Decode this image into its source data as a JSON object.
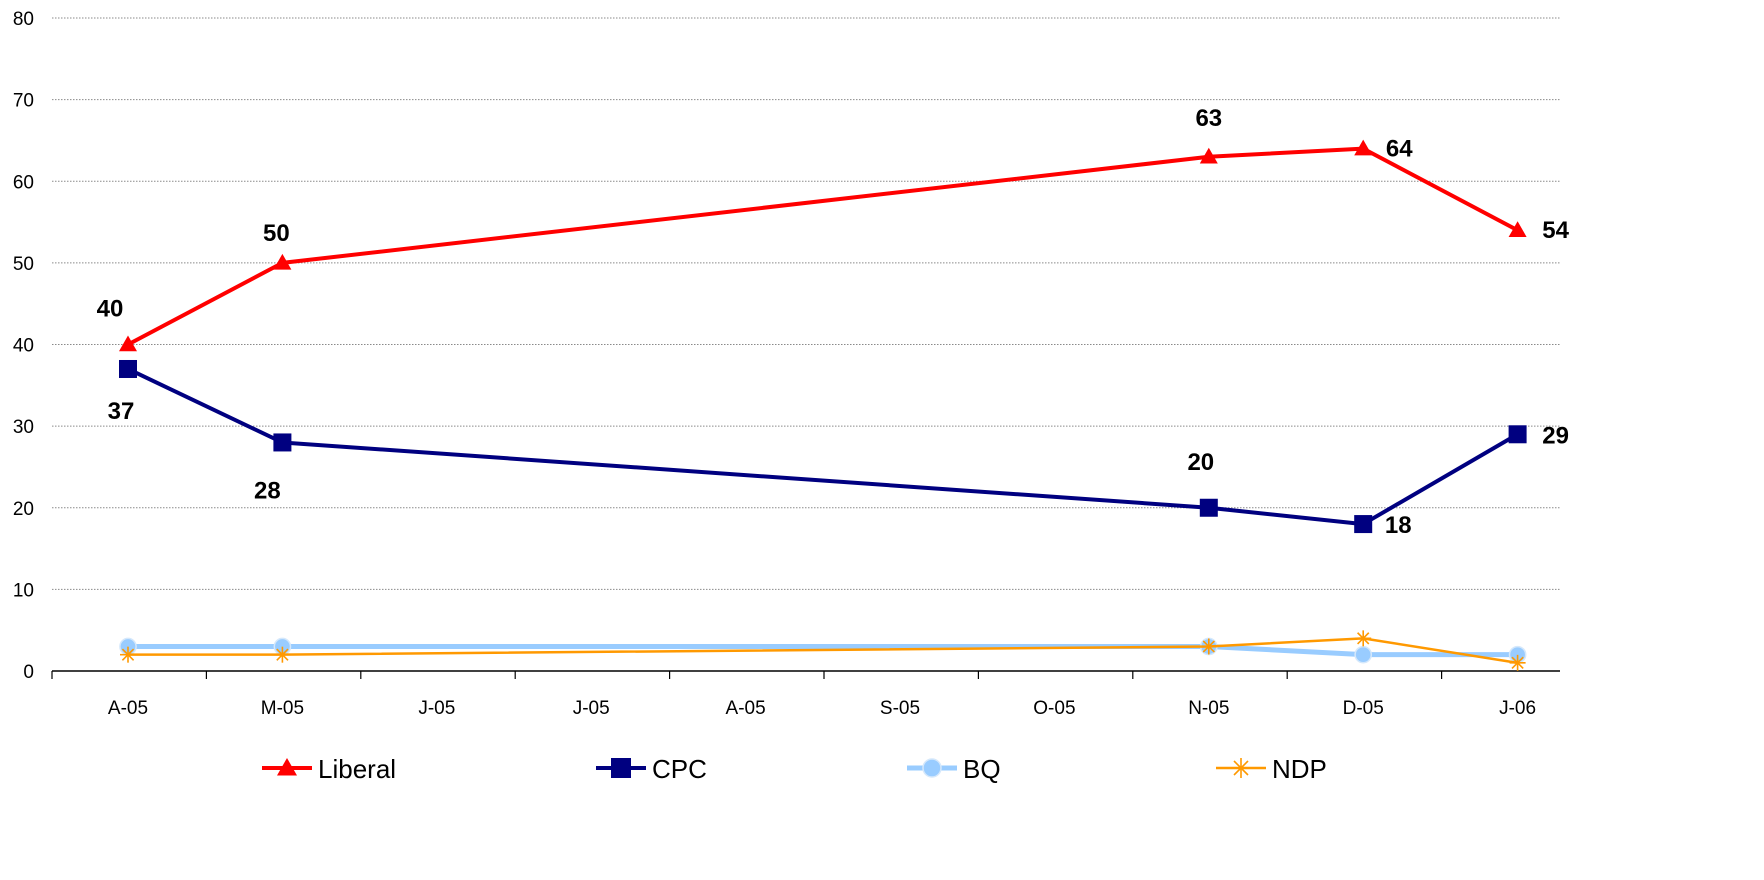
{
  "chart_data": {
    "type": "line",
    "categories": [
      "A-05",
      "M-05",
      "J-05",
      "J-05",
      "A-05",
      "S-05",
      "O-05",
      "N-05",
      "D-05",
      "J-06"
    ],
    "series": [
      {
        "name": "Liberal",
        "color": "#ff0000",
        "marker": "triangle",
        "values": [
          40,
          50,
          null,
          null,
          null,
          null,
          null,
          63,
          64,
          54
        ],
        "labels": [
          "40",
          "50",
          null,
          null,
          null,
          null,
          null,
          "63",
          "64",
          "54"
        ]
      },
      {
        "name": "CPC",
        "color": "#000080",
        "marker": "square",
        "values": [
          37,
          28,
          null,
          null,
          null,
          null,
          null,
          20,
          18,
          29
        ],
        "labels": [
          "37",
          "28",
          null,
          null,
          null,
          null,
          null,
          "20",
          "18",
          "29"
        ]
      },
      {
        "name": "BQ",
        "color": "#99ccff",
        "marker": "circle",
        "values": [
          3,
          3,
          null,
          null,
          null,
          null,
          null,
          3,
          2,
          2
        ]
      },
      {
        "name": "NDP",
        "color": "#ff9900",
        "marker": "star",
        "values": [
          2,
          2,
          null,
          null,
          null,
          null,
          null,
          3,
          4,
          1
        ]
      }
    ],
    "y_ticks": [
      "0",
      "10",
      "20",
      "30",
      "40",
      "50",
      "60",
      "70",
      "80"
    ],
    "ylim": [
      0,
      80
    ],
    "grid": true,
    "legend_position": "bottom"
  }
}
